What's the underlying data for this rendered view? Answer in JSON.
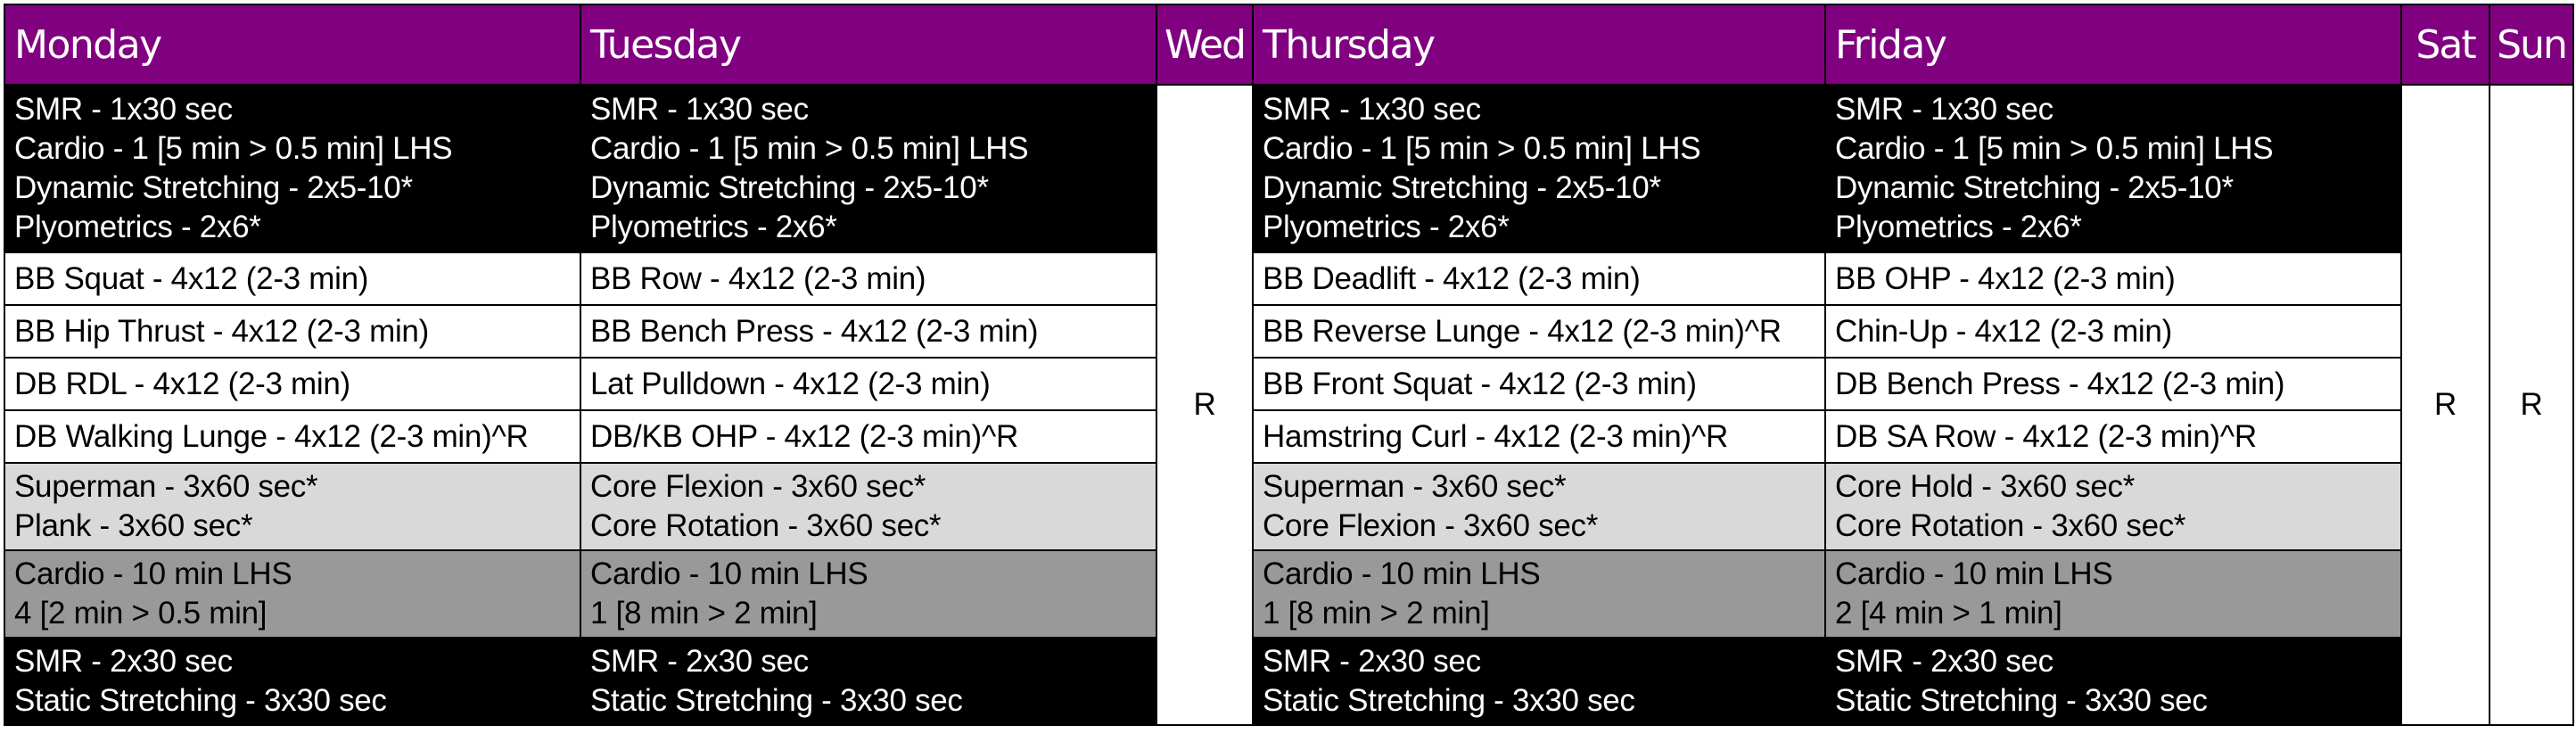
{
  "headers": {
    "mon": "Monday",
    "tue": "Tuesday",
    "wed": "Wed",
    "thu": "Thursday",
    "fri": "Friday",
    "sat": "Sat",
    "sun": "Sun"
  },
  "rest_days": {
    "wed": "R",
    "sat": "R",
    "sun": "R"
  },
  "days": {
    "mon": {
      "warmup": [
        "SMR - 1x30 sec",
        "Cardio - 1 [5 min > 0.5 min] LHS",
        "Dynamic Stretching - 2x5-10*",
        "Plyometrics - 2x6*"
      ],
      "main": [
        "BB Squat - 4x12 (2-3 min)",
        "BB Hip Thrust - 4x12 (2-3 min)",
        "DB RDL - 4x12 (2-3 min)",
        "DB Walking Lunge - 4x12 (2-3 min)^R"
      ],
      "core": [
        "Superman - 3x60 sec*",
        "Plank - 3x60 sec*"
      ],
      "cardio": [
        "Cardio - 10 min LHS",
        "4 [2 min > 0.5 min]"
      ],
      "cooldown": [
        "SMR - 2x30 sec",
        "Static Stretching - 3x30 sec"
      ]
    },
    "tue": {
      "warmup": [
        "SMR - 1x30 sec",
        "Cardio - 1 [5 min > 0.5 min] LHS",
        "Dynamic Stretching - 2x5-10*",
        "Plyometrics - 2x6*"
      ],
      "main": [
        "BB Row - 4x12 (2-3 min)",
        "BB Bench Press - 4x12 (2-3 min)",
        "Lat Pulldown - 4x12 (2-3 min)",
        "DB/KB OHP - 4x12 (2-3 min)^R"
      ],
      "core": [
        "Core Flexion - 3x60 sec*",
        "Core Rotation - 3x60 sec*"
      ],
      "cardio": [
        "Cardio - 10 min LHS",
        "1 [8 min > 2 min]"
      ],
      "cooldown": [
        "SMR - 2x30 sec",
        "Static Stretching - 3x30 sec"
      ]
    },
    "thu": {
      "warmup": [
        "SMR - 1x30 sec",
        "Cardio - 1 [5 min > 0.5 min] LHS",
        "Dynamic Stretching - 2x5-10*",
        "Plyometrics - 2x6*"
      ],
      "main": [
        "BB Deadlift - 4x12 (2-3 min)",
        "BB Reverse Lunge - 4x12 (2-3 min)^R",
        "BB Front Squat - 4x12 (2-3 min)",
        "Hamstring Curl - 4x12 (2-3 min)^R"
      ],
      "core": [
        "Superman - 3x60 sec*",
        "Core Flexion - 3x60 sec*"
      ],
      "cardio": [
        "Cardio - 10 min LHS",
        "1 [8 min > 2 min]"
      ],
      "cooldown": [
        "SMR - 2x30 sec",
        "Static Stretching - 3x30 sec"
      ]
    },
    "fri": {
      "warmup": [
        "SMR - 1x30 sec",
        "Cardio - 1 [5 min > 0.5 min] LHS",
        "Dynamic Stretching - 2x5-10*",
        "Plyometrics - 2x6*"
      ],
      "main": [
        "BB OHP - 4x12 (2-3 min)",
        "Chin-Up - 4x12 (2-3 min)",
        "DB Bench Press - 4x12 (2-3 min)",
        "DB SA Row - 4x12 (2-3 min)^R"
      ],
      "core": [
        "Core Hold - 3x60 sec*",
        "Core Rotation - 3x60 sec*"
      ],
      "cardio": [
        "Cardio - 10 min LHS",
        "2 [4 min > 1 min]"
      ],
      "cooldown": [
        "SMR - 2x30 sec",
        "Static Stretching - 3x30 sec"
      ]
    }
  },
  "colors": {
    "header_bg": "#800080",
    "header_text": "#ffffff",
    "warmup_bg": "#000000",
    "main_bg": "#ffffff",
    "core_bg": "#d9d9d9",
    "cardio_bg": "#999999",
    "cooldown_bg": "#000000",
    "grid": "#000000"
  }
}
